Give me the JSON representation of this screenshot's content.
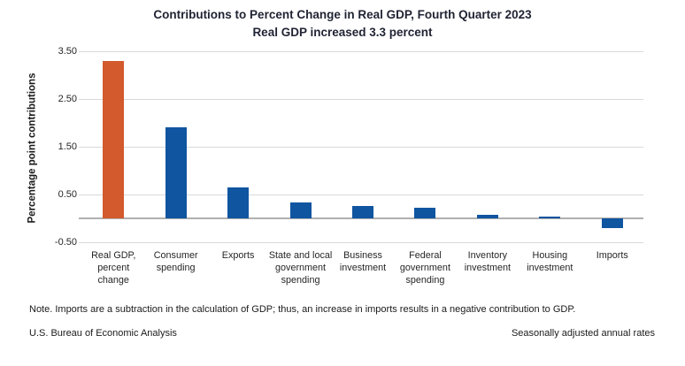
{
  "title": {
    "line1": "Contributions to Percent Change in Real GDP, Fourth Quarter 2023",
    "line2": "Real GDP increased 3.3 percent"
  },
  "chart_data": {
    "type": "bar",
    "title": "Contributions to Percent Change in Real GDP, Fourth Quarter 2023",
    "subtitle": "Real GDP increased 3.3 percent",
    "ylabel": "Percentage point contributions",
    "ylim": [
      -0.5,
      3.5
    ],
    "grid": true,
    "legend": "none",
    "y_ticks": [
      {
        "label": "3.50",
        "value": 3.5
      },
      {
        "label": "2.50",
        "value": 2.5
      },
      {
        "label": "1.50",
        "value": 1.5
      },
      {
        "label": "0.50",
        "value": 0.5
      },
      {
        "label": "-0.50",
        "value": -0.5
      }
    ],
    "categories": [
      "Real GDP, percent change",
      "Consumer spending",
      "Exports",
      "State and local government spending",
      "Business investment",
      "Federal government spending",
      "Inventory investment",
      "Housing investment",
      "Imports"
    ],
    "values": [
      3.3,
      1.91,
      0.64,
      0.34,
      0.26,
      0.22,
      0.07,
      0.04,
      -0.21
    ],
    "points": [
      {
        "label": "Real GDP, percent change",
        "lines": "Real GDP,\npercent\nchange",
        "value": 3.3,
        "color": "#d25a2d"
      },
      {
        "label": "Consumer spending",
        "lines": "Consumer\nspending",
        "value": 1.91,
        "color": "#1055a0"
      },
      {
        "label": "Exports",
        "lines": "Exports",
        "value": 0.64,
        "color": "#1055a0"
      },
      {
        "label": "State and local government spending",
        "lines": "State and local\ngovernment\nspending",
        "value": 0.34,
        "color": "#1055a0"
      },
      {
        "label": "Business investment",
        "lines": "Business\ninvestment",
        "value": 0.26,
        "color": "#1055a0"
      },
      {
        "label": "Federal government spending",
        "lines": "Federal\ngovernment\nspending",
        "value": 0.22,
        "color": "#1055a0"
      },
      {
        "label": "Inventory investment",
        "lines": "Inventory\ninvestment",
        "value": 0.07,
        "color": "#1055a0"
      },
      {
        "label": "Housing investment",
        "lines": "Housing\ninvestment",
        "value": 0.04,
        "color": "#1055a0"
      },
      {
        "label": "Imports",
        "lines": "Imports",
        "value": -0.21,
        "color": "#1055a0"
      }
    ],
    "colors": {
      "highlight": "#d25a2d",
      "default": "#1055a0",
      "gridline": "#d9d9d9",
      "baseline": "#b0b0b0"
    }
  },
  "note": "Note. Imports are a subtraction in the calculation of GDP; thus, an increase in imports results in a negative contribution to GDP.",
  "footer": {
    "left": "U.S. Bureau of Economic Analysis",
    "right": "Seasonally adjusted annual rates"
  }
}
